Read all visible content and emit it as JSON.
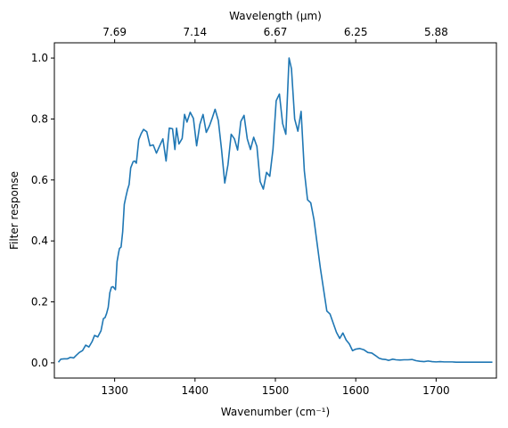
{
  "chart_data": {
    "type": "line",
    "xlabel": "Wavenumber (cm⁻¹)",
    "ylabel": "Filter response",
    "top_xlabel": "Wavelength (μm)",
    "xlim": [
      1225,
      1775
    ],
    "ylim": [
      -0.05,
      1.05
    ],
    "grid": false,
    "line_color": "#1f77b4",
    "x_ticks": [
      {
        "value": 1300,
        "label": "1300"
      },
      {
        "value": 1400,
        "label": "1400"
      },
      {
        "value": 1500,
        "label": "1500"
      },
      {
        "value": 1600,
        "label": "1600"
      },
      {
        "value": 1700,
        "label": "1700"
      }
    ],
    "y_ticks": [
      {
        "value": 0.0,
        "label": "0.0"
      },
      {
        "value": 0.2,
        "label": "0.2"
      },
      {
        "value": 0.4,
        "label": "0.4"
      },
      {
        "value": 0.6,
        "label": "0.6"
      },
      {
        "value": 0.8,
        "label": "0.8"
      },
      {
        "value": 1.0,
        "label": "1.0"
      }
    ],
    "top_ticks": [
      {
        "label": "7.69",
        "wavenumber": 1300
      },
      {
        "label": "7.14",
        "wavenumber": 1400
      },
      {
        "label": "6.67",
        "wavenumber": 1500
      },
      {
        "label": "6.25",
        "wavenumber": 1600
      },
      {
        "label": "5.88",
        "wavenumber": 1700
      }
    ],
    "series": [
      {
        "x": [
          1230,
          1233,
          1237,
          1241,
          1245,
          1249,
          1252,
          1256,
          1260,
          1264,
          1268,
          1272,
          1275,
          1279,
          1283,
          1286,
          1288,
          1290,
          1292,
          1294,
          1296,
          1298,
          1301,
          1303,
          1305,
          1306,
          1308,
          1310,
          1312,
          1314,
          1316,
          1318,
          1320,
          1323,
          1325,
          1327,
          1330,
          1333,
          1336,
          1340,
          1344,
          1348,
          1352,
          1356,
          1360,
          1364,
          1368,
          1372,
          1375,
          1377,
          1380,
          1384,
          1387,
          1390,
          1394,
          1398,
          1402,
          1406,
          1410,
          1414,
          1418,
          1421,
          1425,
          1429,
          1433,
          1437,
          1441,
          1445,
          1449,
          1453,
          1457,
          1461,
          1465,
          1469,
          1473,
          1477,
          1481,
          1485,
          1489,
          1493,
          1497,
          1501,
          1505,
          1509,
          1513,
          1517,
          1520,
          1524,
          1528,
          1532,
          1536,
          1540,
          1544,
          1548,
          1552,
          1556,
          1560,
          1564,
          1568,
          1572,
          1576,
          1580,
          1584,
          1588,
          1592,
          1596,
          1600,
          1605,
          1610,
          1615,
          1620,
          1625,
          1629,
          1633,
          1637,
          1641,
          1646,
          1650,
          1655,
          1660,
          1665,
          1670,
          1675,
          1680,
          1685,
          1690,
          1695,
          1700,
          1705,
          1710,
          1715,
          1720,
          1725,
          1730,
          1735,
          1740,
          1745,
          1750,
          1755,
          1760,
          1765,
          1770
        ],
        "y": [
          0.002,
          0.012,
          0.013,
          0.013,
          0.018,
          0.016,
          0.024,
          0.034,
          0.04,
          0.058,
          0.052,
          0.07,
          0.09,
          0.085,
          0.105,
          0.145,
          0.148,
          0.162,
          0.182,
          0.23,
          0.248,
          0.25,
          0.24,
          0.332,
          0.362,
          0.375,
          0.38,
          0.43,
          0.52,
          0.545,
          0.568,
          0.585,
          0.64,
          0.66,
          0.662,
          0.655,
          0.732,
          0.752,
          0.766,
          0.758,
          0.712,
          0.715,
          0.688,
          0.712,
          0.735,
          0.662,
          0.77,
          0.768,
          0.7,
          0.77,
          0.718,
          0.736,
          0.815,
          0.79,
          0.822,
          0.802,
          0.712,
          0.782,
          0.815,
          0.756,
          0.778,
          0.8,
          0.832,
          0.795,
          0.7,
          0.59,
          0.65,
          0.75,
          0.735,
          0.698,
          0.792,
          0.812,
          0.735,
          0.7,
          0.74,
          0.71,
          0.595,
          0.57,
          0.625,
          0.612,
          0.7,
          0.86,
          0.882,
          0.785,
          0.75,
          1.0,
          0.965,
          0.8,
          0.76,
          0.825,
          0.63,
          0.535,
          0.525,
          0.47,
          0.39,
          0.31,
          0.24,
          0.17,
          0.16,
          0.13,
          0.1,
          0.08,
          0.098,
          0.075,
          0.062,
          0.04,
          0.045,
          0.047,
          0.043,
          0.034,
          0.032,
          0.023,
          0.015,
          0.012,
          0.011,
          0.008,
          0.012,
          0.01,
          0.009,
          0.01,
          0.01,
          0.011,
          0.007,
          0.005,
          0.004,
          0.006,
          0.004,
          0.003,
          0.004,
          0.003,
          0.003,
          0.003,
          0.002,
          0.002,
          0.002,
          0.002,
          0.002,
          0.002,
          0.002,
          0.002,
          0.002,
          0.002
        ]
      }
    ]
  }
}
